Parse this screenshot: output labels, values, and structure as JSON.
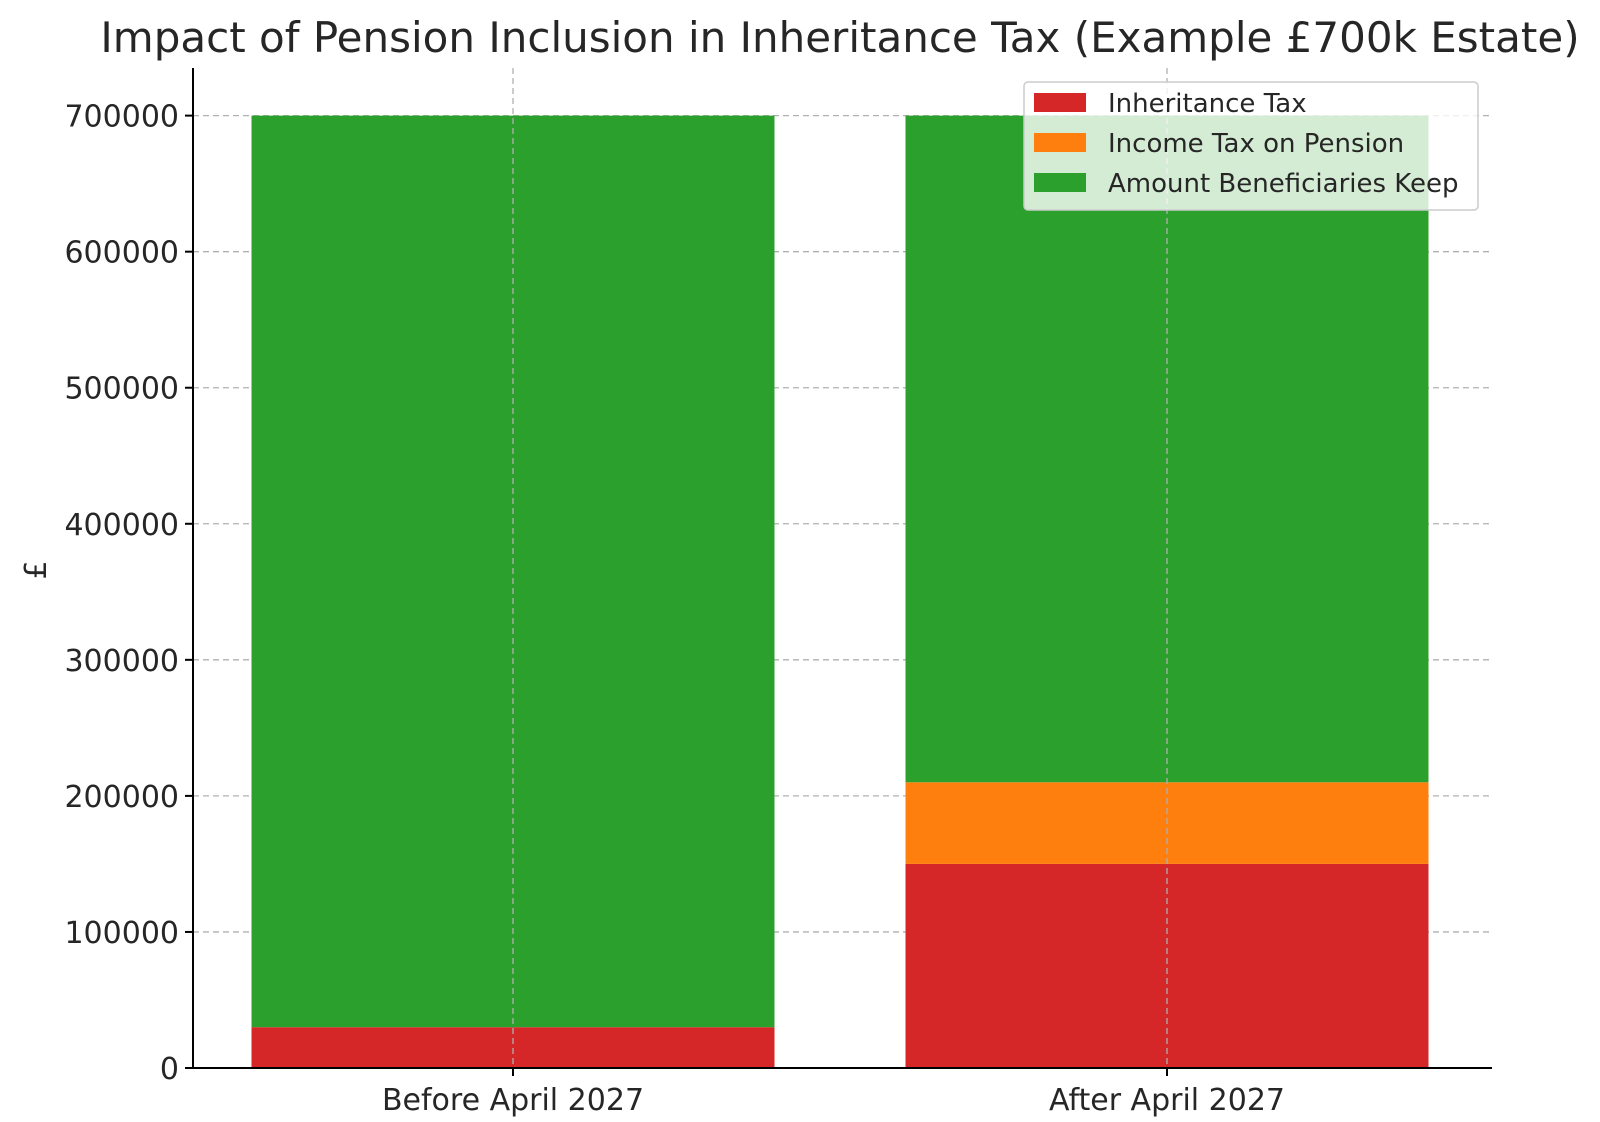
{
  "chart_data": {
    "type": "bar",
    "stacked": true,
    "title": "Impact of Pension Inclusion in Inheritance Tax (Example £700k Estate)",
    "xlabel": "",
    "ylabel": "£",
    "categories": [
      "Before April 2027",
      "After April 2027"
    ],
    "series": [
      {
        "name": "Inheritance Tax",
        "values": [
          30000,
          150000
        ],
        "color": "#d62728"
      },
      {
        "name": "Income Tax on Pension",
        "values": [
          0,
          60000
        ],
        "color": "#ff7f0e"
      },
      {
        "name": "Amount Beneficiaries Keep",
        "values": [
          670000,
          490000
        ],
        "color": "#2ca02c"
      }
    ],
    "ylim": [
      0,
      735000
    ],
    "yticks": [
      0,
      100000,
      200000,
      300000,
      400000,
      500000,
      600000,
      700000
    ],
    "ytick_labels": [
      "0",
      "100000",
      "200000",
      "300000",
      "400000",
      "500000",
      "600000",
      "700000"
    ],
    "grid": true,
    "legend_position": "top-right"
  }
}
